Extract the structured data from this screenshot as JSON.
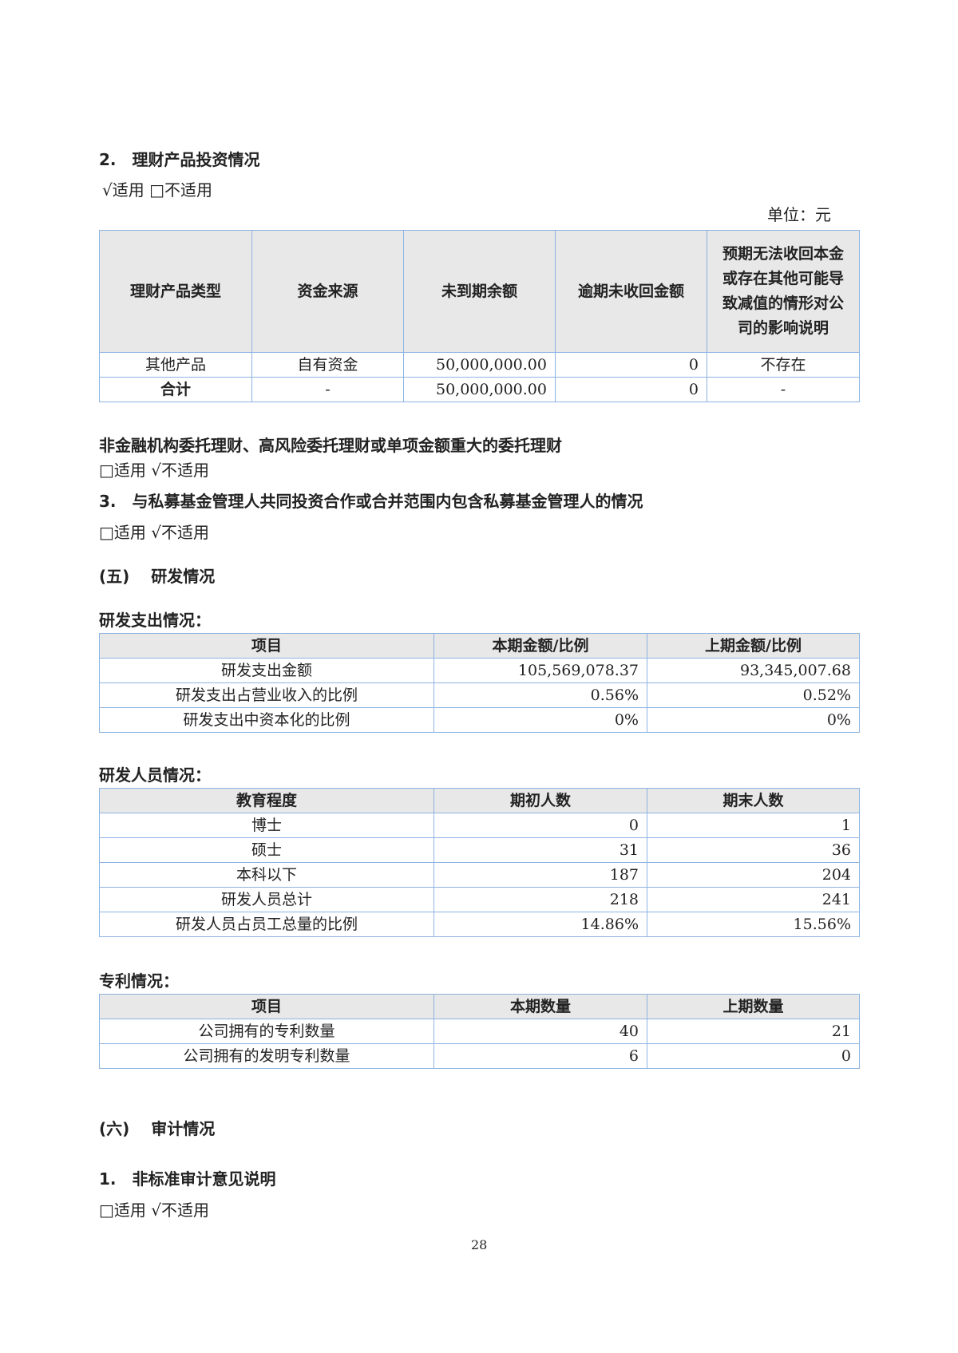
{
  "sec2": {
    "title": "2.　理财产品投资情况",
    "applicable": "√适用 □不适用",
    "unit": "单位：元"
  },
  "t1": {
    "headers": [
      "理财产品类型",
      "资金来源",
      "未到期余额",
      "逾期未收回金额",
      "预期无法收回本金或存在其他可能导致减值的情形对公司的影响说明"
    ],
    "rows": [
      [
        "其他产品",
        "自有资金",
        "50,000,000.00",
        "0",
        "不存在"
      ],
      [
        "合计",
        "-",
        "50,000,000.00",
        "0",
        "-"
      ]
    ]
  },
  "nonfin": {
    "title": "非金融机构委托理财、高风险委托理财或单项金额重大的委托理财",
    "applicable": "□适用 √不适用"
  },
  "sec3": {
    "title": "3.　与私募基金管理人共同投资合作或合并范围内包含私募基金管理人的情况",
    "applicable": "□适用 √不适用"
  },
  "sec5": {
    "title": "(五)　 研发情况"
  },
  "t2": {
    "caption": "研发支出情况：",
    "headers": [
      "项目",
      "本期金额/比例",
      "上期金额/比例"
    ],
    "rows": [
      [
        "研发支出金额",
        "105,569,078.37",
        "93,345,007.68"
      ],
      [
        "研发支出占营业收入的比例",
        "0.56%",
        "0.52%"
      ],
      [
        "研发支出中资本化的比例",
        "0%",
        "0%"
      ]
    ]
  },
  "t3": {
    "caption": "研发人员情况：",
    "headers": [
      "教育程度",
      "期初人数",
      "期末人数"
    ],
    "rows": [
      [
        "博士",
        "0",
        "1"
      ],
      [
        "硕士",
        "31",
        "36"
      ],
      [
        "本科以下",
        "187",
        "204"
      ],
      [
        "研发人员总计",
        "218",
        "241"
      ],
      [
        "研发人员占员工总量的比例",
        "14.86%",
        "15.56%"
      ]
    ]
  },
  "t4": {
    "caption": "专利情况：",
    "headers": [
      "项目",
      "本期数量",
      "上期数量"
    ],
    "rows": [
      [
        "公司拥有的专利数量",
        "40",
        "21"
      ],
      [
        "公司拥有的发明专利数量",
        "6",
        "0"
      ]
    ]
  },
  "sec6": {
    "title": "(六)　 审计情况"
  },
  "audit": {
    "title": "1.　非标准审计意见说明",
    "applicable": "□适用 √不适用"
  },
  "page_number": "28"
}
